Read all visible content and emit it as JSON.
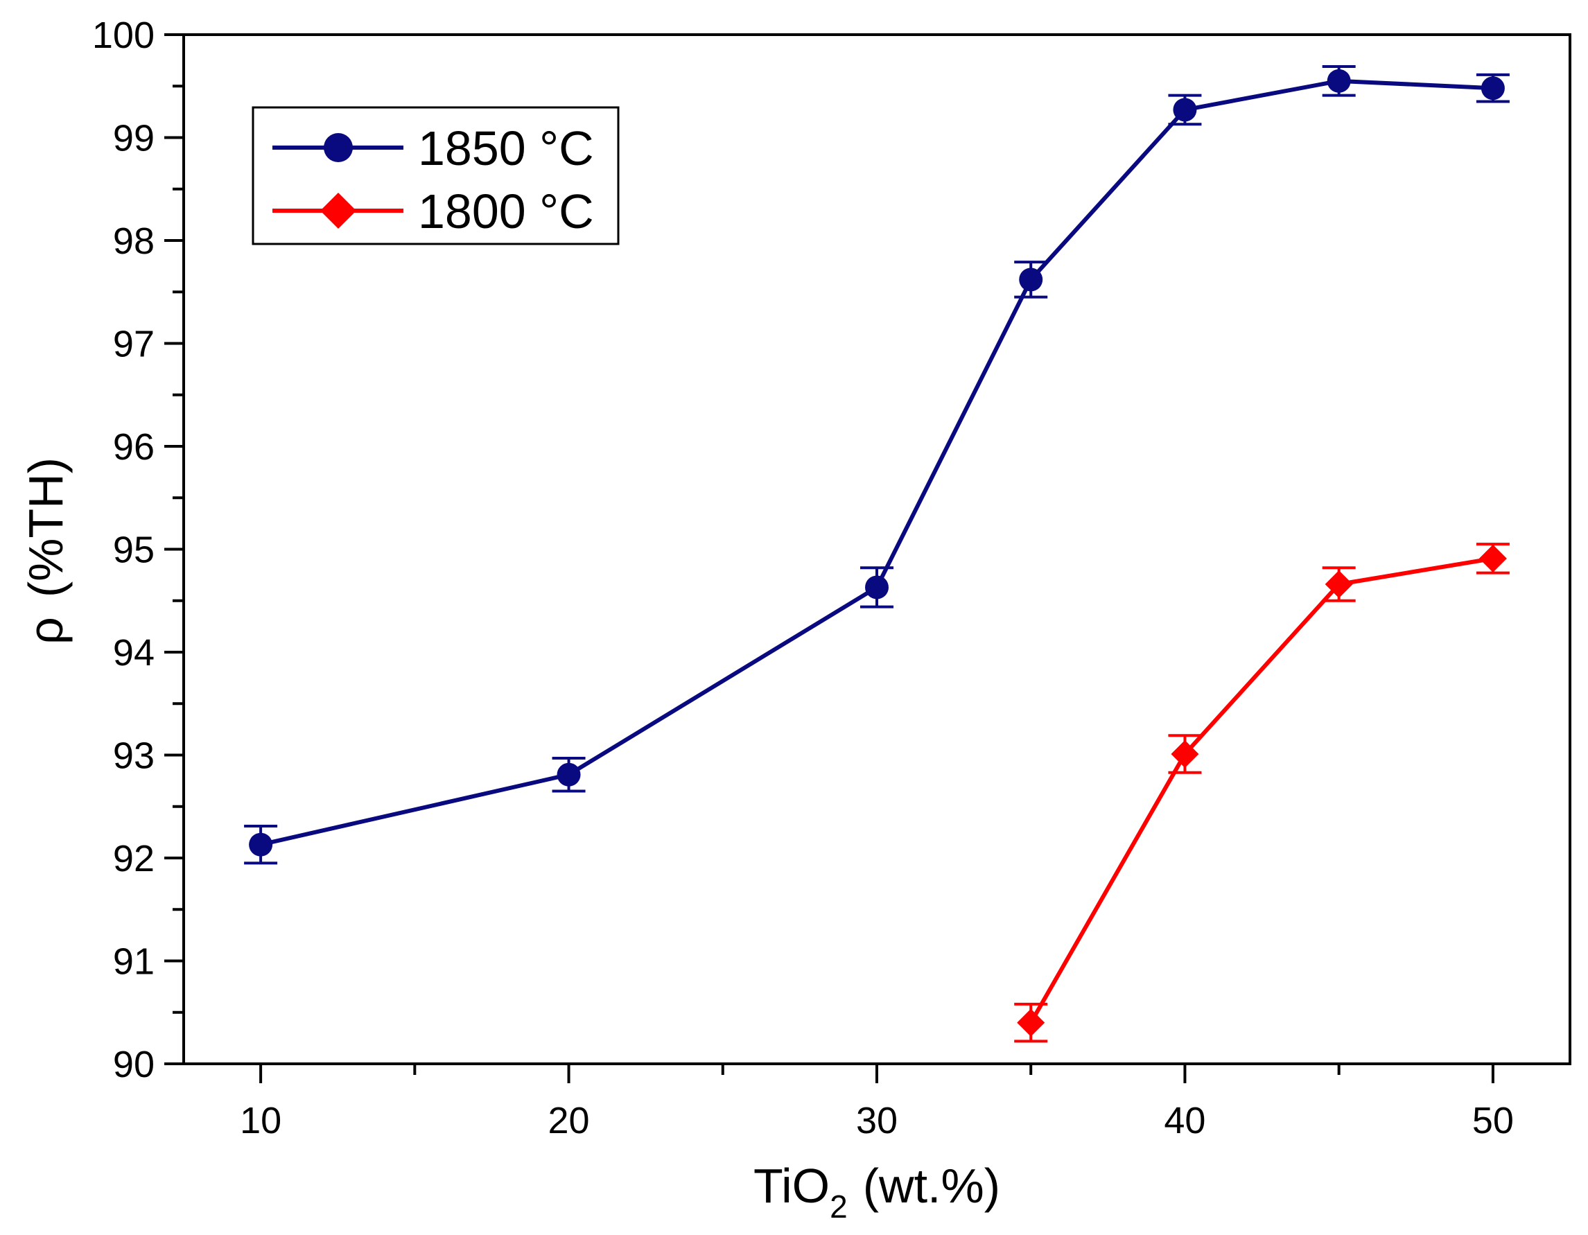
{
  "chart_data": {
    "type": "line",
    "title": "",
    "xlabel": "TiO",
    "xlabel_subscript": "2",
    "xlabel_unit": "(wt.%)",
    "ylabel_symbol": "ρ",
    "ylabel_unit": "(%TH)",
    "xlim": [
      7.5,
      52.5
    ],
    "ylim": [
      90,
      100
    ],
    "xticks": [
      10,
      20,
      30,
      40,
      50
    ],
    "xtick_labels": [
      "10",
      "20",
      "30",
      "40",
      "50"
    ],
    "xminor": [
      15,
      25,
      35,
      45
    ],
    "yticks": [
      90,
      91,
      92,
      93,
      94,
      95,
      96,
      97,
      98,
      99,
      100
    ],
    "ytick_labels": [
      "90",
      "91",
      "92",
      "93",
      "94",
      "95",
      "96",
      "97",
      "98",
      "99",
      "100"
    ],
    "grid": false,
    "legend_position": "top-left",
    "series": [
      {
        "name": "1850 °C",
        "color": "#0a0a80",
        "marker": "circle",
        "x": [
          10,
          20,
          30,
          35,
          40,
          45,
          50
        ],
        "y": [
          92.13,
          92.81,
          94.63,
          97.62,
          99.27,
          99.55,
          99.48
        ],
        "err": [
          0.18,
          0.16,
          0.19,
          0.17,
          0.14,
          0.14,
          0.13
        ]
      },
      {
        "name": "1800 °C",
        "color": "#ff0000",
        "marker": "diamond",
        "x": [
          35,
          40,
          45,
          50
        ],
        "y": [
          90.4,
          93.01,
          94.66,
          94.91
        ],
        "err": [
          0.18,
          0.18,
          0.16,
          0.14
        ]
      }
    ]
  }
}
